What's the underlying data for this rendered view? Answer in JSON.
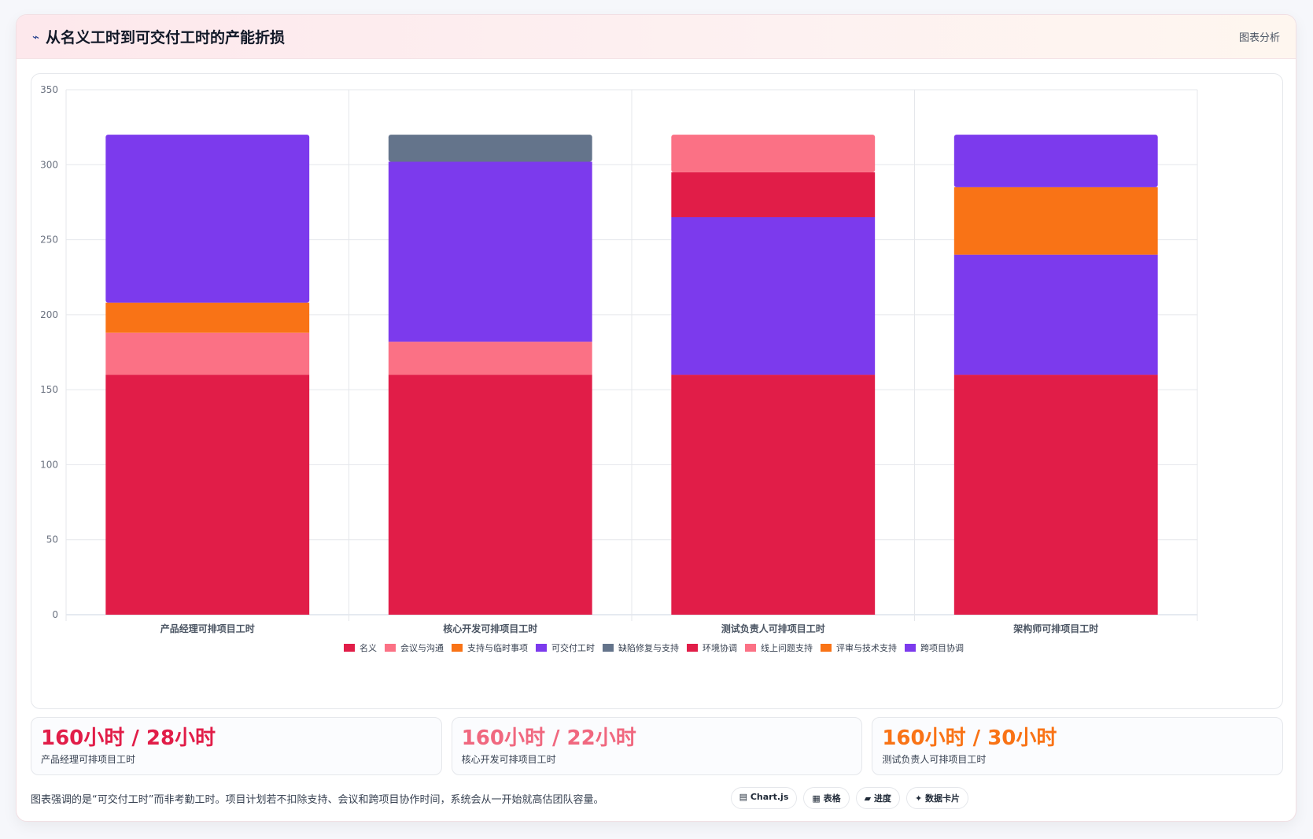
{
  "header": {
    "title": "从名义工时到可交付工时的产能折损",
    "right_label": "图表分析",
    "icon": "chart-line-icon"
  },
  "chart_data": {
    "type": "bar",
    "stacked": true,
    "categories": [
      "产品经理可排项目工时",
      "核心开发可排项目工时",
      "测试负责人可排项目工时",
      "架构师可排项目工时"
    ],
    "ylim": [
      0,
      350
    ],
    "yticks": [
      0,
      50,
      100,
      150,
      200,
      250,
      300,
      350
    ],
    "grid": true,
    "legend_position": "bottom",
    "series": [
      {
        "name": "名义",
        "color": "#e11d48",
        "values": [
          160,
          160,
          160,
          160
        ]
      },
      {
        "name": "会议与沟通",
        "color": "#fb7185",
        "values": [
          28,
          22,
          0,
          0
        ]
      },
      {
        "name": "支持与临时事项",
        "color": "#f97316",
        "values": [
          20,
          0,
          0,
          0
        ]
      },
      {
        "name": "可交付工时",
        "color": "#7c3aed",
        "values": [
          112,
          120,
          0,
          0
        ]
      },
      {
        "name": "缺陷修复与支持",
        "color": "#64748b",
        "values": [
          0,
          18,
          0,
          0
        ]
      },
      {
        "name": "环境协调",
        "color": "#e11d48",
        "values": [
          0,
          0,
          30,
          0
        ]
      },
      {
        "name": "线上问题支持",
        "color": "#fb7185",
        "values": [
          0,
          0,
          25,
          0
        ]
      },
      {
        "name": "评审与技术支持",
        "color": "#f97316",
        "values": [
          0,
          0,
          0,
          45
        ]
      },
      {
        "name": "跨项目协调",
        "color": "#7c3aed",
        "values": [
          0,
          0,
          0,
          35
        ]
      }
    ],
    "extra_segments": [
      {
        "category_index": 2,
        "series_index": 3,
        "insert_after": 0,
        "value": 105
      },
      {
        "category_index": 3,
        "series_index": 3,
        "insert_after": 0,
        "value": 80
      }
    ]
  },
  "stats": [
    {
      "value": "160小时 / 28小时",
      "label": "产品经理可排项目工时",
      "color": "#e11d48"
    },
    {
      "value": "160小时 / 22小时",
      "label": "核心开发可排项目工时",
      "color": "#f0687f"
    },
    {
      "value": "160小时 / 30小时",
      "label": "测试负责人可排项目工时",
      "color": "#f97316"
    }
  ],
  "footer": {
    "note": "图表强调的是“可交付工时”而非考勤工时。项目计划若不扣除支持、会议和跨项目协作时间，系统会从一开始就高估团队容量。",
    "chips": [
      {
        "icon": "▤",
        "label": "Chart.js"
      },
      {
        "icon": "▦",
        "label": "表格"
      },
      {
        "icon": "▰",
        "label": "进度"
      },
      {
        "icon": "✦",
        "label": "数据卡片"
      }
    ]
  }
}
